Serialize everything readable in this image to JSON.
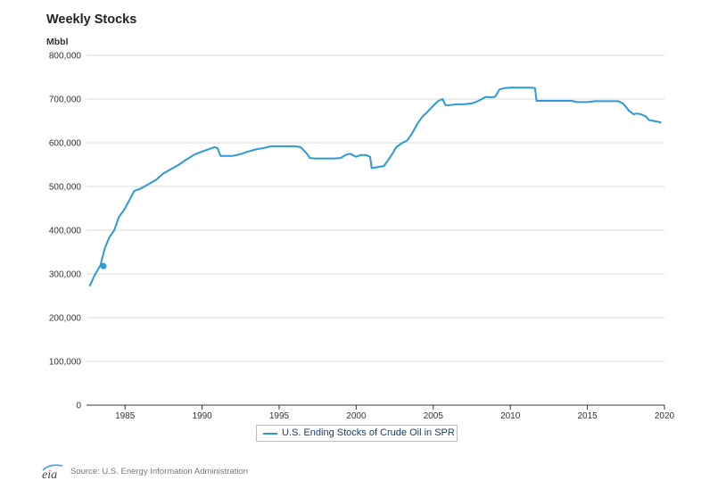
{
  "chart_data": {
    "type": "line",
    "title": "Weekly Stocks",
    "ylabel": "Mbbl",
    "xlim": [
      1982.5,
      2020
    ],
    "ylim": [
      0,
      800000
    ],
    "xticks": [
      1985,
      1990,
      1995,
      2000,
      2005,
      2010,
      2015,
      2020
    ],
    "yticks": [
      0,
      100000,
      200000,
      300000,
      400000,
      500000,
      600000,
      700000,
      800000
    ],
    "ytick_labels": [
      "0",
      "100,000",
      "200,000",
      "300,000",
      "400,000",
      "500,000",
      "600,000",
      "700,000",
      "800,000"
    ],
    "grid": "horizontal",
    "legend_position": "bottom-center",
    "series": [
      {
        "name": "U.S. Ending Stocks of Crude Oil in SPR",
        "color": "#2b9ad6",
        "x": [
          1982.7,
          1983.0,
          1983.4,
          1983.7,
          1984.0,
          1984.3,
          1984.6,
          1985.0,
          1985.3,
          1985.6,
          1986.0,
          1986.5,
          1987.0,
          1987.5,
          1988.0,
          1988.5,
          1989.0,
          1989.5,
          1990.0,
          1990.4,
          1990.8,
          1991.0,
          1991.2,
          1991.5,
          1992.0,
          1992.5,
          1993.0,
          1993.5,
          1994.0,
          1994.5,
          1995.0,
          1995.5,
          1996.0,
          1996.4,
          1996.8,
          1997.0,
          1997.3,
          1997.6,
          1998.0,
          1998.5,
          1999.0,
          1999.3,
          1999.6,
          2000.0,
          2000.3,
          2000.6,
          2000.9,
          2001.0,
          2001.2,
          2001.5,
          2001.8,
          2002.0,
          2002.3,
          2002.6,
          2003.0,
          2003.3,
          2003.6,
          2004.0,
          2004.3,
          2004.6,
          2005.0,
          2005.3,
          2005.6,
          2005.8,
          2006.0,
          2006.5,
          2007.0,
          2007.5,
          2008.0,
          2008.4,
          2008.8,
          2009.0,
          2009.3,
          2009.6,
          2010.0,
          2010.5,
          2011.0,
          2011.4,
          2011.6,
          2011.7,
          2012.0,
          2013.0,
          2014.0,
          2014.3,
          2015.0,
          2015.5,
          2016.0,
          2016.5,
          2017.0,
          2017.3,
          2017.5,
          2017.7,
          2018.0,
          2018.2,
          2018.5,
          2018.8,
          2019.0,
          2019.3,
          2019.6,
          2019.8
        ],
        "values": [
          272000,
          295000,
          320000,
          360000,
          385000,
          400000,
          430000,
          450000,
          470000,
          490000,
          495000,
          505000,
          515000,
          530000,
          540000,
          550000,
          562000,
          573000,
          580000,
          585000,
          590000,
          588000,
          570000,
          570000,
          570000,
          574000,
          580000,
          585000,
          588000,
          592000,
          592000,
          592000,
          592000,
          590000,
          575000,
          565000,
          564000,
          564000,
          564000,
          564000,
          565000,
          572000,
          575000,
          568000,
          572000,
          572000,
          568000,
          542000,
          543000,
          545000,
          547000,
          557000,
          572000,
          590000,
          600000,
          605000,
          620000,
          645000,
          660000,
          670000,
          685000,
          695000,
          700000,
          686000,
          686000,
          688000,
          688000,
          690000,
          697000,
          705000,
          704000,
          705000,
          722000,
          725000,
          726000,
          726000,
          726000,
          726000,
          725000,
          696000,
          696000,
          696000,
          696000,
          693000,
          693000,
          695000,
          695000,
          695000,
          695000,
          690000,
          682000,
          673000,
          665000,
          667000,
          665000,
          660000,
          652000,
          650000,
          648000,
          646000
        ]
      }
    ],
    "marker": {
      "x": 1983.6,
      "y": 318000
    }
  },
  "source": {
    "logo_text": "eia",
    "text": "Source: U.S. Energy Information Administration"
  }
}
